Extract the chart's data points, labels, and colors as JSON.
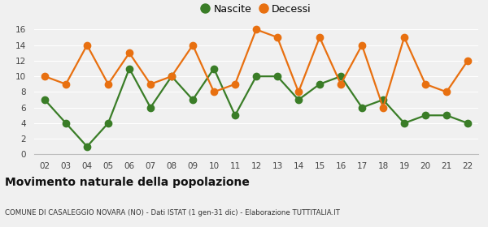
{
  "years": [
    "02",
    "03",
    "04",
    "05",
    "06",
    "07",
    "08",
    "09",
    "10",
    "11",
    "12",
    "13",
    "14",
    "15",
    "16",
    "17",
    "18",
    "19",
    "20",
    "21",
    "22"
  ],
  "nascite": [
    7,
    4,
    1,
    4,
    11,
    6,
    10,
    7,
    11,
    5,
    10,
    10,
    7,
    9,
    10,
    6,
    7,
    4,
    5,
    5,
    4
  ],
  "decessi": [
    10,
    9,
    14,
    9,
    13,
    9,
    10,
    14,
    8,
    9,
    16,
    15,
    8,
    15,
    9,
    14,
    6,
    15,
    9,
    8,
    12
  ],
  "nascite_color": "#3a7d27",
  "decessi_color": "#e87010",
  "background_color": "#f0f0f0",
  "ylim": [
    0,
    16
  ],
  "yticks": [
    0,
    2,
    4,
    6,
    8,
    10,
    12,
    14,
    16
  ],
  "title": "Movimento naturale della popolazione",
  "subtitle": "COMUNE DI CASALEGGIO NOVARA (NO) - Dati ISTAT (1 gen-31 dic) - Elaborazione TUTTITALIA.IT",
  "legend_nascite": "Nascite",
  "legend_decessi": "Decessi",
  "marker_size": 6,
  "line_width": 1.6
}
